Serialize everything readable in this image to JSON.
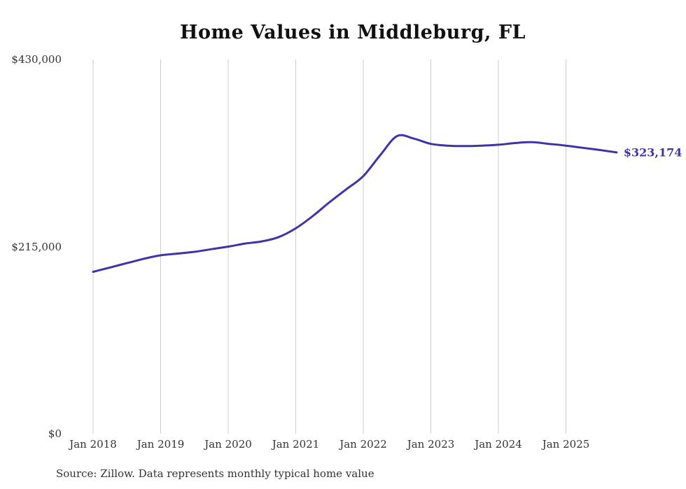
{
  "chart_data": {
    "type": "line",
    "title": "Home Values in Middleburg, FL",
    "series_name": "Typical home value",
    "x": [
      "2018-01",
      "2018-04",
      "2018-07",
      "2018-10",
      "2019-01",
      "2019-04",
      "2019-07",
      "2019-10",
      "2020-01",
      "2020-04",
      "2020-07",
      "2020-10",
      "2021-01",
      "2021-04",
      "2021-07",
      "2021-10",
      "2022-01",
      "2022-04",
      "2022-07",
      "2022-10",
      "2023-01",
      "2023-04",
      "2023-07",
      "2023-10",
      "2024-01",
      "2024-04",
      "2024-07",
      "2024-10",
      "2025-01",
      "2025-04",
      "2025-07",
      "2025-10"
    ],
    "values": [
      186000,
      191000,
      196000,
      201000,
      205000,
      207000,
      209000,
      212000,
      215000,
      218500,
      221000,
      226000,
      236000,
      250000,
      266000,
      281000,
      296000,
      320000,
      342000,
      339000,
      333000,
      331000,
      330500,
      331000,
      332000,
      334000,
      335000,
      333000,
      331000,
      328500,
      326000,
      323174
    ],
    "ylim": [
      0,
      430000
    ],
    "yticks": [
      {
        "value": 0,
        "label": "$0"
      },
      {
        "value": 215000,
        "label": "$215,000"
      },
      {
        "value": 430000,
        "label": "$430,000"
      }
    ],
    "xticks": [
      {
        "month": "2018-01",
        "label": "Jan 2018"
      },
      {
        "month": "2019-01",
        "label": "Jan 2019"
      },
      {
        "month": "2020-01",
        "label": "Jan 2020"
      },
      {
        "month": "2021-01",
        "label": "Jan 2021"
      },
      {
        "month": "2022-01",
        "label": "Jan 2022"
      },
      {
        "month": "2023-01",
        "label": "Jan 2023"
      },
      {
        "month": "2024-01",
        "label": "Jan 2024"
      },
      {
        "month": "2025-01",
        "label": "Jan 2025"
      }
    ],
    "grid": "vertical-only",
    "legend": "none",
    "line_color": "#3d34a5",
    "gridline_color": "#cccccc",
    "end_label": "$323,174",
    "source_note": "Source: Zillow. Data represents monthly typical home value"
  }
}
